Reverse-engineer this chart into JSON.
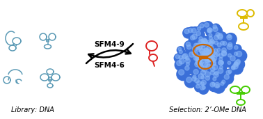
{
  "title_left": "Library: DNA",
  "title_right": "Selection: 2’-OMe DNA",
  "arrow_top_label": "SFM4-6",
  "arrow_bottom_label": "SFM4-9",
  "dna_color": "#5b9ab5",
  "protein_color_base": "#3a6fd8",
  "protein_color_mid": "#4a88e8",
  "protein_color_hi": "#8ab8f8",
  "aptamer_red": "#dd2222",
  "aptamer_orange": "#cc6600",
  "aptamer_yellow": "#ddbb00",
  "aptamer_green": "#44cc00",
  "bg_color": "#ffffff",
  "figsize": [
    3.78,
    1.71
  ],
  "dpi": 100
}
